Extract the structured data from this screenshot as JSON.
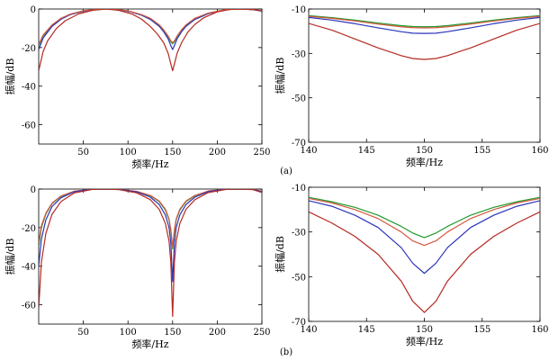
{
  "figure": {
    "caption_a": "(a)",
    "caption_b": "(b)"
  },
  "chart_data": [
    {
      "id": "a-left",
      "type": "line",
      "xlabel": "频率/Hz",
      "ylabel": "振幅/dB",
      "xlim": [
        0,
        250
      ],
      "ylim": [
        -70,
        0
      ],
      "xticks": [
        50,
        100,
        150,
        200,
        250
      ],
      "yticks": [
        0,
        -20,
        -40,
        -60
      ],
      "series": [
        {
          "name": "green",
          "color": "#1f9a2c",
          "x": [
            0,
            5,
            15,
            25,
            35,
            50,
            65,
            75,
            85,
            100,
            115,
            125,
            135,
            140,
            145,
            148,
            150,
            152,
            155,
            160,
            165,
            175,
            190,
            210,
            225,
            240,
            250
          ],
          "y": [
            -19,
            -14,
            -8.5,
            -5,
            -2.8,
            -1,
            -0.2,
            0,
            -0.2,
            -1,
            -3,
            -5,
            -8.5,
            -11,
            -14.5,
            -17,
            -18,
            -17,
            -14.5,
            -11,
            -8.5,
            -5,
            -2.2,
            -0.3,
            0,
            -0.3,
            -1
          ]
        },
        {
          "name": "blue",
          "color": "#2a35b8",
          "x": [
            0,
            5,
            15,
            25,
            35,
            50,
            65,
            75,
            85,
            100,
            115,
            125,
            135,
            140,
            145,
            148,
            150,
            152,
            155,
            160,
            165,
            175,
            190,
            210,
            225,
            240,
            250
          ],
          "y": [
            -21,
            -15,
            -9,
            -5.3,
            -3,
            -1.1,
            -0.2,
            0,
            -0.2,
            -1.1,
            -3.2,
            -5.4,
            -9,
            -11.8,
            -15.5,
            -19,
            -21,
            -19,
            -15.5,
            -11.8,
            -9,
            -5.4,
            -2.4,
            -0.3,
            0,
            -0.3,
            -1.1
          ]
        },
        {
          "name": "orange",
          "color": "#d4583f",
          "x": [
            0,
            5,
            15,
            25,
            35,
            50,
            65,
            75,
            85,
            100,
            115,
            125,
            135,
            140,
            145,
            148,
            150,
            152,
            155,
            160,
            165,
            175,
            190,
            210,
            225,
            240,
            250
          ],
          "y": [
            -18.5,
            -13.5,
            -8.2,
            -4.8,
            -2.7,
            -0.9,
            -0.2,
            0,
            -0.2,
            -0.9,
            -2.9,
            -4.8,
            -8.2,
            -10.8,
            -14,
            -16.5,
            -17.5,
            -16.5,
            -14,
            -10.8,
            -8.2,
            -4.8,
            -2.1,
            -0.3,
            0,
            -0.3,
            -0.9
          ]
        },
        {
          "name": "red",
          "color": "#b52a22",
          "x": [
            0,
            5,
            10,
            20,
            30,
            45,
            60,
            75,
            90,
            105,
            115,
            125,
            133,
            140,
            145,
            148,
            150,
            152,
            155,
            160,
            167,
            175,
            185,
            200,
            215,
            225,
            240,
            250
          ],
          "y": [
            -32,
            -22,
            -16.5,
            -10,
            -6,
            -2.5,
            -0.7,
            0,
            -0.7,
            -2.7,
            -5.2,
            -9,
            -13,
            -17.5,
            -23,
            -28.5,
            -32,
            -28.5,
            -23,
            -17.5,
            -12,
            -8,
            -4.5,
            -1.5,
            -0.2,
            0,
            -0.3,
            -1
          ]
        }
      ]
    },
    {
      "id": "a-right",
      "type": "line",
      "xlabel": "频率/Hz",
      "ylabel": "振幅/dB",
      "xlim": [
        140,
        160
      ],
      "ylim": [
        -70,
        -10
      ],
      "xticks": [
        140,
        145,
        150,
        155,
        160
      ],
      "yticks": [
        -10,
        -30,
        -50,
        -70
      ],
      "series": [
        {
          "name": "green",
          "color": "#1f9a2c",
          "x": [
            140,
            142,
            144,
            146,
            148,
            149,
            150,
            151,
            152,
            154,
            156,
            158,
            160
          ],
          "y": [
            -13,
            -13.9,
            -15,
            -16.3,
            -17.5,
            -17.9,
            -18,
            -17.9,
            -17.5,
            -16.3,
            -15,
            -13.9,
            -13
          ]
        },
        {
          "name": "orange",
          "color": "#d4583f",
          "x": [
            140,
            142,
            144,
            146,
            148,
            149,
            150,
            151,
            152,
            154,
            156,
            158,
            160
          ],
          "y": [
            -13.3,
            -14.2,
            -15.4,
            -16.8,
            -18,
            -18.4,
            -18.5,
            -18.4,
            -18,
            -16.8,
            -15.4,
            -14.2,
            -13.3
          ]
        },
        {
          "name": "blue",
          "color": "#2a35b8",
          "x": [
            140,
            142,
            144,
            146,
            148,
            149,
            150,
            151,
            152,
            154,
            156,
            158,
            160
          ],
          "y": [
            -13.8,
            -15,
            -16.6,
            -18.5,
            -20.2,
            -20.9,
            -21,
            -20.9,
            -20.2,
            -18.5,
            -16.6,
            -15,
            -13.8
          ]
        },
        {
          "name": "red",
          "color": "#b52a22",
          "x": [
            140,
            142,
            144,
            146,
            148,
            149,
            150,
            151,
            152,
            154,
            156,
            158,
            160
          ],
          "y": [
            -16.5,
            -19.5,
            -23.5,
            -27.5,
            -31,
            -32.3,
            -32.7,
            -32.3,
            -31,
            -27.5,
            -23.5,
            -19.5,
            -16.5
          ]
        }
      ]
    },
    {
      "id": "b-left",
      "type": "line",
      "xlabel": "频率/Hz",
      "ylabel": "振幅/dB",
      "xlim": [
        0,
        250
      ],
      "ylim": [
        -70,
        0
      ],
      "xticks": [
        50,
        100,
        150,
        200,
        250
      ],
      "yticks": [
        0,
        -20,
        -40,
        -60
      ],
      "series": [
        {
          "name": "green",
          "color": "#1f9a2c",
          "x": [
            0,
            3,
            8,
            15,
            25,
            40,
            60,
            75,
            90,
            110,
            125,
            135,
            142,
            146,
            148,
            150,
            152,
            154,
            158,
            165,
            175,
            190,
            210,
            225,
            240,
            250
          ],
          "y": [
            -30,
            -20,
            -13,
            -7.5,
            -3.8,
            -1.2,
            -0.1,
            0,
            -0.2,
            -1.3,
            -3.5,
            -6.5,
            -11,
            -16,
            -22,
            -31,
            -22,
            -16,
            -11,
            -6.5,
            -3.5,
            -1.1,
            -0.1,
            0,
            -0.2,
            -1.2
          ]
        },
        {
          "name": "orange",
          "color": "#d4583f",
          "x": [
            0,
            3,
            8,
            15,
            25,
            40,
            60,
            75,
            90,
            110,
            125,
            135,
            142,
            146,
            148,
            150,
            152,
            154,
            158,
            165,
            175,
            190,
            210,
            225,
            240,
            250
          ],
          "y": [
            -28,
            -19,
            -12.5,
            -7.2,
            -3.6,
            -1.1,
            -0.1,
            0,
            -0.2,
            -1.2,
            -3.3,
            -6.2,
            -10.5,
            -15.5,
            -21,
            -30,
            -21,
            -15.5,
            -10.5,
            -6.2,
            -3.3,
            -1,
            -0.1,
            0,
            -0.2,
            -1.1
          ]
        },
        {
          "name": "blue",
          "color": "#2a35b8",
          "x": [
            0,
            3,
            8,
            15,
            25,
            40,
            60,
            75,
            90,
            110,
            125,
            135,
            142,
            146,
            148,
            150,
            152,
            154,
            158,
            165,
            175,
            190,
            210,
            225,
            240,
            250
          ],
          "y": [
            -40,
            -26,
            -16,
            -9,
            -4.5,
            -1.4,
            -0.1,
            0,
            -0.2,
            -1.5,
            -4.2,
            -8,
            -13.5,
            -20,
            -28,
            -48,
            -28,
            -20,
            -13.5,
            -8,
            -4.2,
            -1.3,
            -0.1,
            0,
            -0.2,
            -1.4
          ]
        },
        {
          "name": "red",
          "color": "#b52a22",
          "x": [
            0,
            3,
            8,
            15,
            25,
            40,
            60,
            75,
            90,
            110,
            125,
            135,
            142,
            146,
            148,
            150,
            152,
            154,
            158,
            165,
            175,
            190,
            210,
            225,
            240,
            250
          ],
          "y": [
            -62,
            -38,
            -23,
            -13,
            -6.5,
            -2,
            -0.2,
            0,
            -0.3,
            -2,
            -5.5,
            -10.5,
            -18,
            -27,
            -38,
            -66,
            -38,
            -27,
            -18,
            -10.5,
            -5.5,
            -1.8,
            -0.2,
            0,
            -0.3,
            -1.8
          ]
        }
      ]
    },
    {
      "id": "b-right",
      "type": "line",
      "xlabel": "频率/Hz",
      "ylabel": "振幅/dB",
      "xlim": [
        140,
        160
      ],
      "ylim": [
        -70,
        -10
      ],
      "xticks": [
        140,
        145,
        150,
        155,
        160
      ],
      "yticks": [
        -10,
        -30,
        -50,
        -70
      ],
      "series": [
        {
          "name": "green",
          "color": "#1f9a2c",
          "x": [
            140,
            142,
            144,
            146,
            148,
            149,
            150,
            151,
            152,
            154,
            156,
            158,
            160
          ],
          "y": [
            -14.5,
            -16.5,
            -19,
            -22.5,
            -27.5,
            -30.5,
            -32.5,
            -30.5,
            -27.5,
            -22.5,
            -19,
            -16.5,
            -14.5
          ]
        },
        {
          "name": "orange",
          "color": "#d4583f",
          "x": [
            140,
            142,
            144,
            146,
            148,
            149,
            150,
            151,
            152,
            154,
            156,
            158,
            160
          ],
          "y": [
            -15,
            -17,
            -20,
            -24,
            -30,
            -34,
            -36,
            -34,
            -30,
            -24,
            -20,
            -17,
            -15
          ]
        },
        {
          "name": "blue",
          "color": "#2a35b8",
          "x": [
            140,
            142,
            144,
            146,
            148,
            149,
            150,
            151,
            152,
            154,
            156,
            158,
            160
          ],
          "y": [
            -16,
            -18.5,
            -22.5,
            -28,
            -37,
            -44,
            -48.5,
            -44,
            -37,
            -28,
            -22.5,
            -18.5,
            -16
          ]
        },
        {
          "name": "red",
          "color": "#b52a22",
          "x": [
            140,
            142,
            144,
            146,
            148,
            149,
            150,
            151,
            152,
            154,
            156,
            158,
            160
          ],
          "y": [
            -21,
            -26,
            -32,
            -40,
            -52,
            -61,
            -66,
            -61,
            -52,
            -40,
            -32,
            -26,
            -21
          ]
        }
      ]
    }
  ]
}
